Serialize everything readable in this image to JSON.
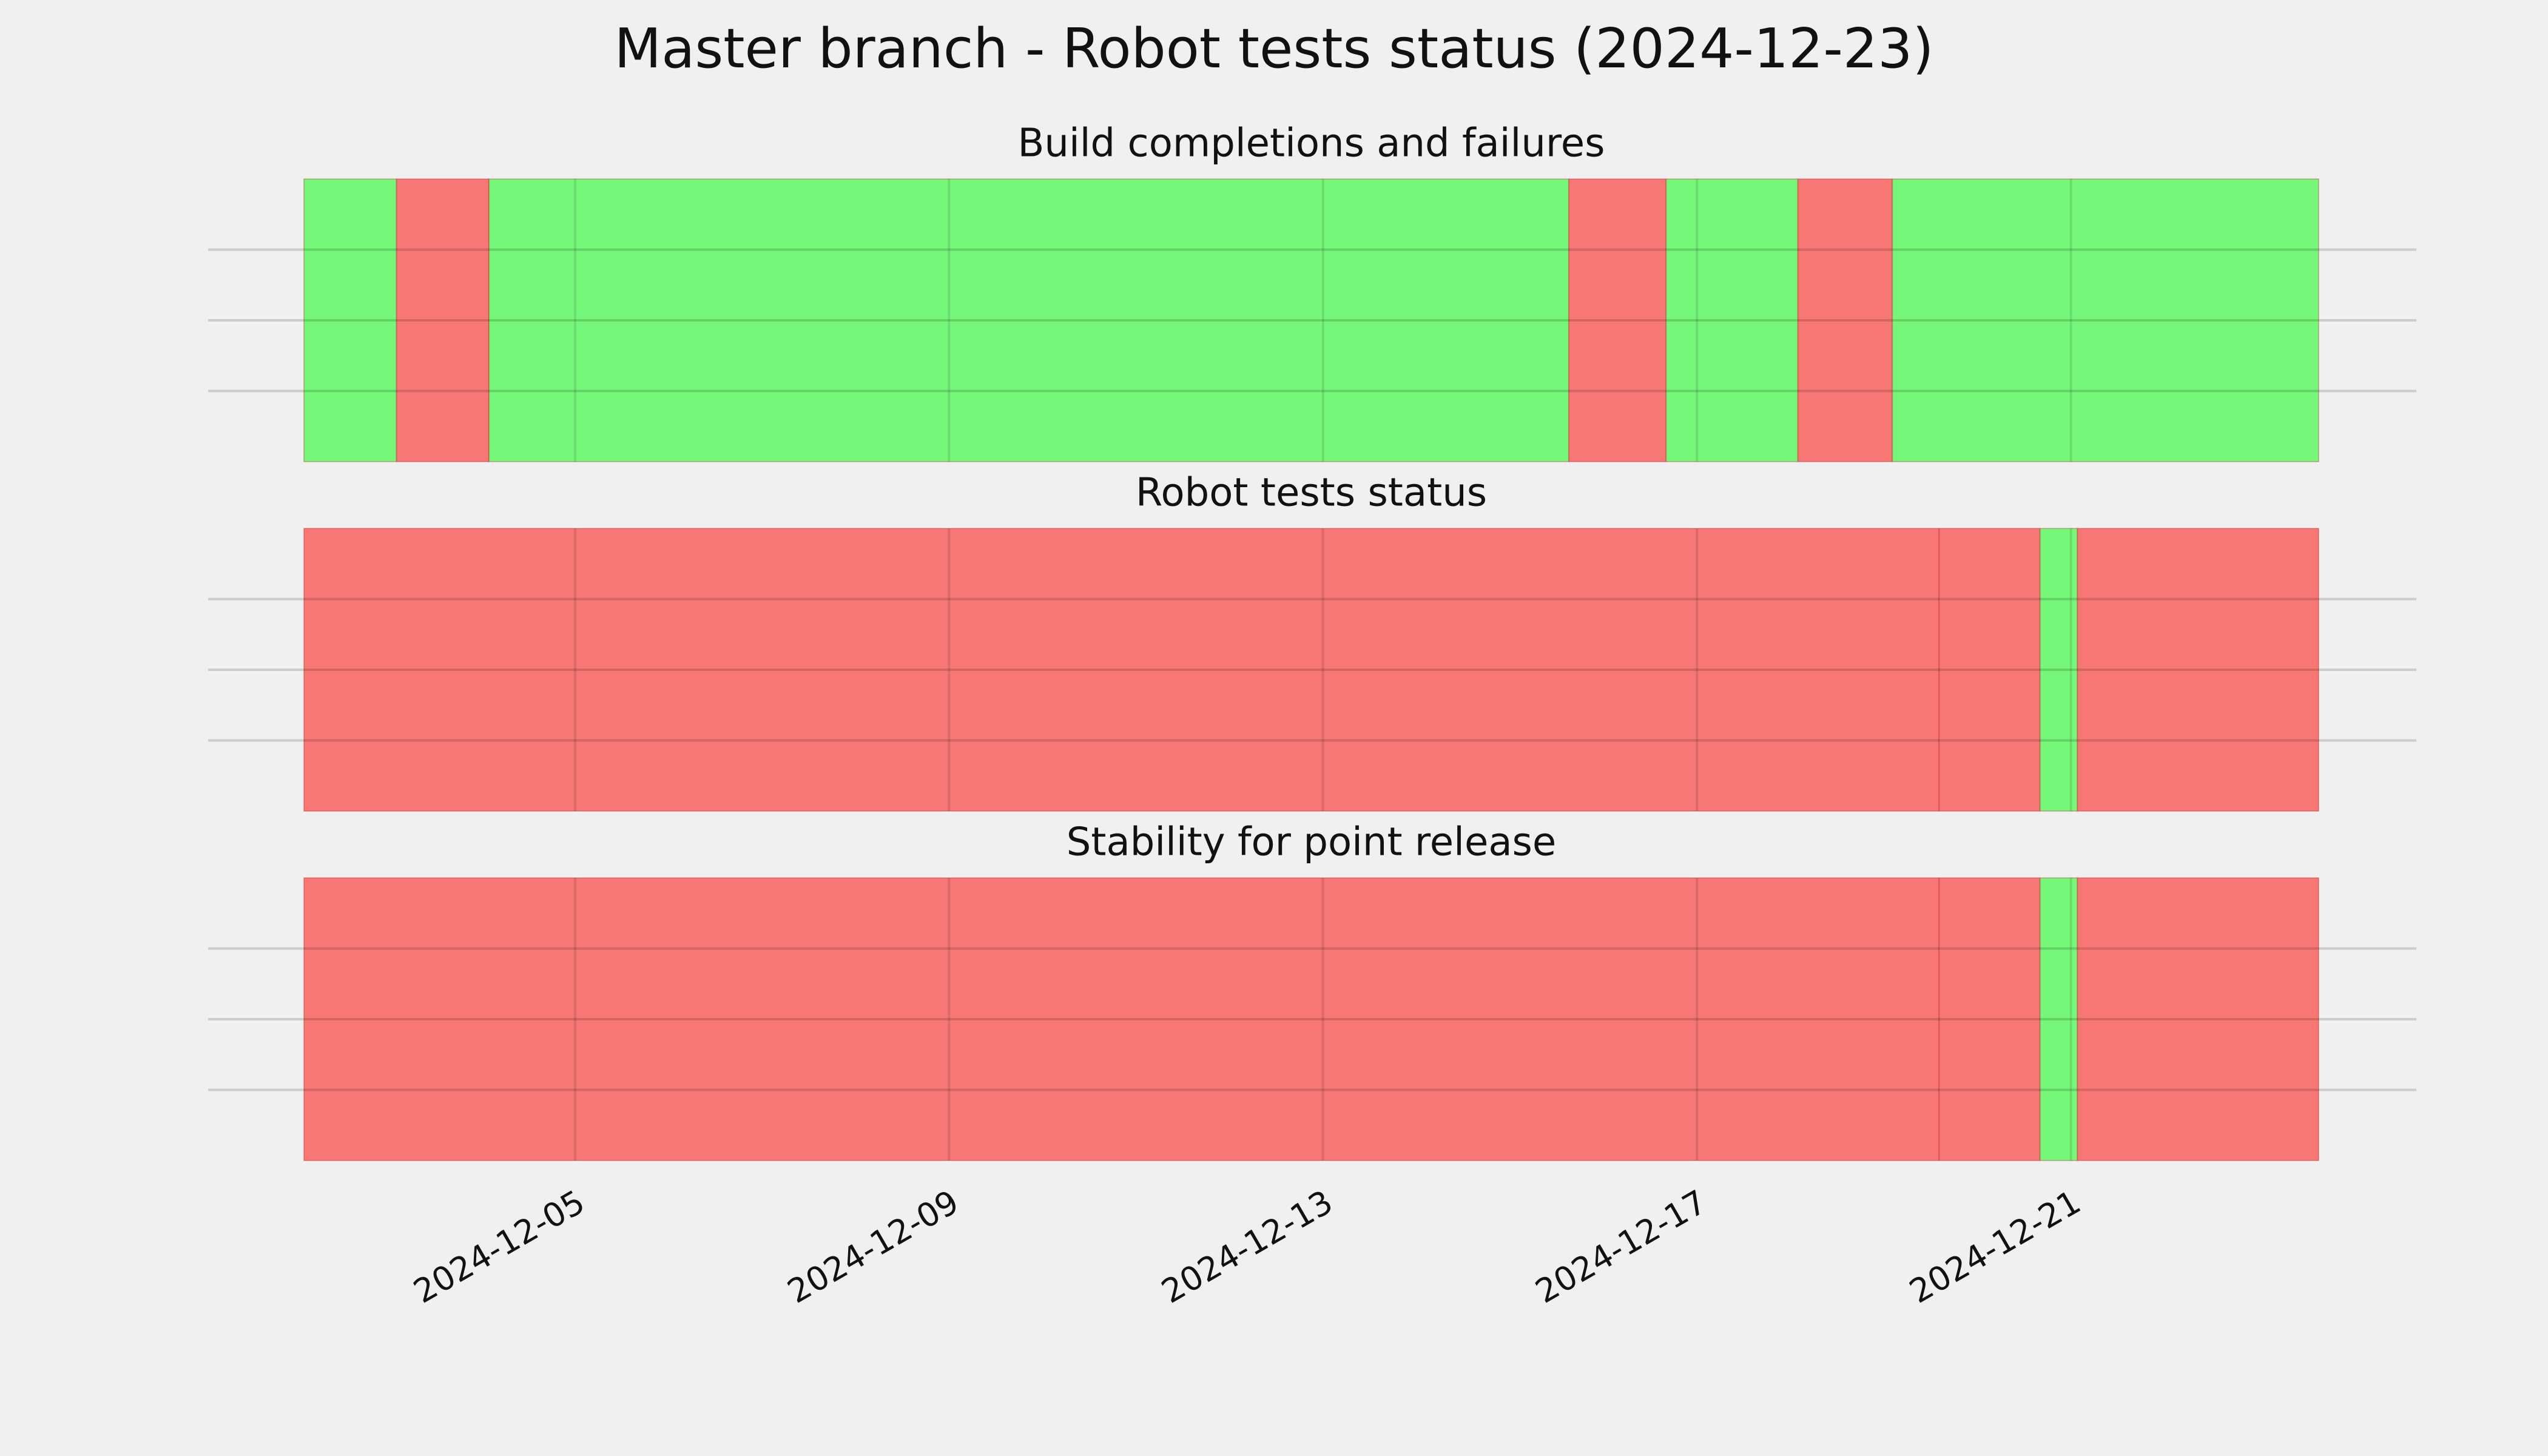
{
  "chart_data": [
    {
      "type": "span",
      "title": "Master branch - Robot tests status (2024-12-23)",
      "subtitle": "Build completions and failures",
      "spans": [
        {
          "start": 20059.1,
          "end": 20060.09,
          "color": "#75f77a"
        },
        {
          "start": 20060.09,
          "end": 20061.08,
          "color": "#f77775"
        },
        {
          "start": 20061.08,
          "end": 20072.63,
          "color": "#75f77a"
        },
        {
          "start": 20072.63,
          "end": 20073.67,
          "color": "#f77775"
        },
        {
          "start": 20073.67,
          "end": 20075.08,
          "color": "#75f77a"
        },
        {
          "start": 20075.08,
          "end": 20076.09,
          "color": "#f77775"
        },
        {
          "start": 20076.09,
          "end": 20080.65,
          "color": "#75f77a"
        }
      ],
      "xlim": [
        20059.1,
        20080.65
      ],
      "xticks": [
        {
          "value": 20062,
          "label": "2024-12-05"
        },
        {
          "value": 20066,
          "label": "2024-12-09"
        },
        {
          "value": 20070,
          "label": "2024-12-13"
        },
        {
          "value": 20074,
          "label": "2024-12-17"
        },
        {
          "value": 20078,
          "label": "2024-12-21"
        }
      ],
      "ylim": [
        0,
        1
      ],
      "yticks": [
        0.25,
        0.5,
        0.75
      ],
      "grid": true
    },
    {
      "type": "span",
      "subtitle": "Robot tests status",
      "spans": [
        {
          "start": 20059.1,
          "end": 20076.59,
          "color": "#f77775"
        },
        {
          "start": 20076.59,
          "end": 20077.67,
          "color": "#f77775"
        },
        {
          "start": 20077.67,
          "end": 20078.07,
          "color": "#75f77a"
        },
        {
          "start": 20078.07,
          "end": 20080.65,
          "color": "#f77775"
        }
      ],
      "xlim": [
        20059.1,
        20080.65
      ],
      "xticks": [
        20062,
        20066,
        20070,
        20074,
        20078
      ],
      "ylim": [
        0,
        1
      ],
      "yticks": [
        0.25,
        0.5,
        0.75
      ],
      "grid": true
    },
    {
      "type": "span",
      "subtitle": "Stability for point release",
      "spans": [
        {
          "start": 20059.1,
          "end": 20076.59,
          "color": "#f77775"
        },
        {
          "start": 20076.59,
          "end": 20077.67,
          "color": "#f77775"
        },
        {
          "start": 20077.67,
          "end": 20078.07,
          "color": "#75f77a"
        },
        {
          "start": 20078.07,
          "end": 20080.65,
          "color": "#f77775"
        }
      ],
      "xlim": [
        20059.1,
        20080.65
      ],
      "xticks": [
        20062,
        20066,
        20070,
        20074,
        20078
      ],
      "ylim": [
        0,
        1
      ],
      "yticks": [
        0.25,
        0.5,
        0.75
      ],
      "grid": true
    }
  ]
}
